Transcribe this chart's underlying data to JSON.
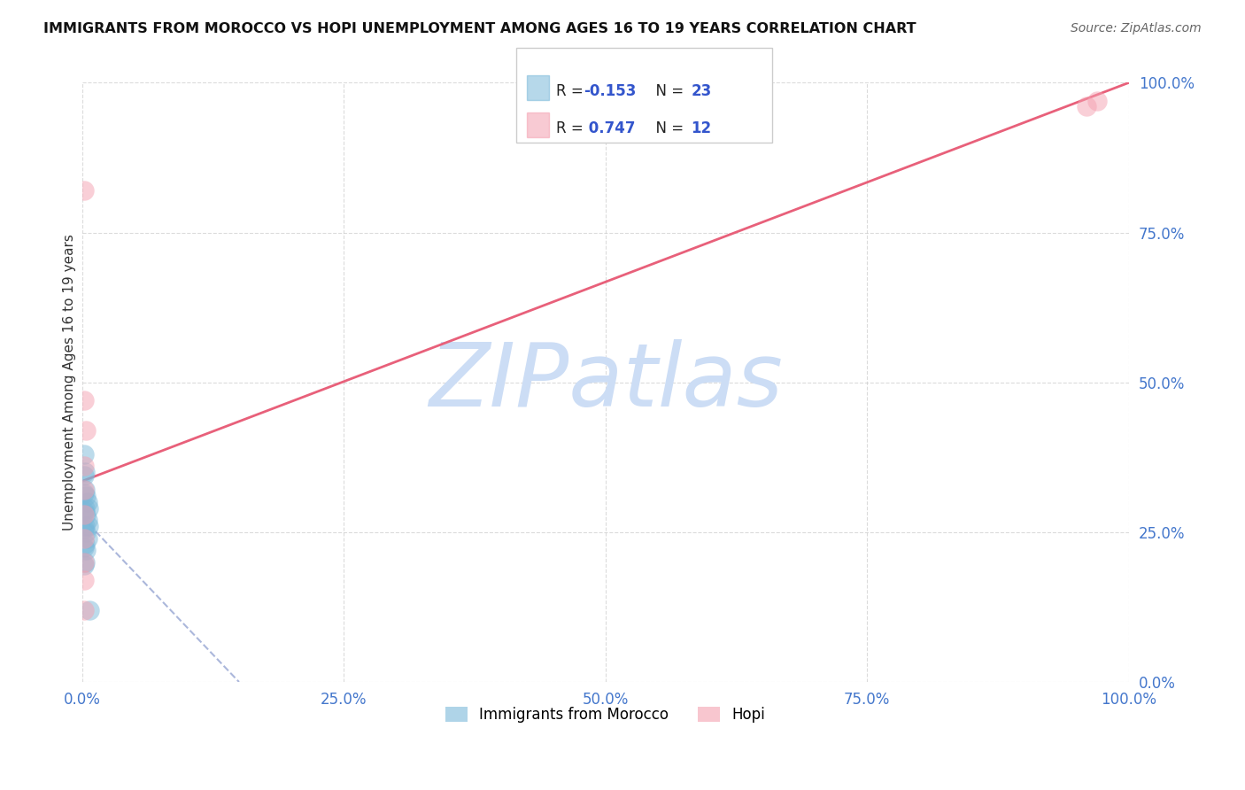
{
  "title": "IMMIGRANTS FROM MOROCCO VS HOPI UNEMPLOYMENT AMONG AGES 16 TO 19 YEARS CORRELATION CHART",
  "source": "Source: ZipAtlas.com",
  "ylabel": "Unemployment Among Ages 16 to 19 years",
  "xlim": [
    0,
    1
  ],
  "ylim": [
    0,
    1
  ],
  "xticks": [
    0.0,
    0.25,
    0.5,
    0.75,
    1.0
  ],
  "yticks": [
    0.0,
    0.25,
    0.5,
    0.75,
    1.0
  ],
  "xticklabels": [
    "0.0%",
    "25.0%",
    "50.0%",
    "75.0%",
    "100.0%"
  ],
  "yticklabels": [
    "0.0%",
    "25.0%",
    "50.0%",
    "75.0%",
    "100.0%"
  ],
  "legend_labels": [
    "Immigrants from Morocco",
    "Hopi"
  ],
  "morocco_R": -0.153,
  "morocco_N": 23,
  "hopi_R": 0.747,
  "hopi_N": 12,
  "blue_color": "#7ab8d9",
  "pink_color": "#f4a0b0",
  "blue_line_color": "#8899cc",
  "pink_line_color": "#e8607a",
  "blue_scatter": [
    [
      0.002,
      0.38
    ],
    [
      0.002,
      0.345
    ],
    [
      0.002,
      0.315
    ],
    [
      0.002,
      0.285
    ],
    [
      0.002,
      0.255
    ],
    [
      0.002,
      0.225
    ],
    [
      0.002,
      0.195
    ],
    [
      0.003,
      0.35
    ],
    [
      0.003,
      0.32
    ],
    [
      0.003,
      0.29
    ],
    [
      0.003,
      0.26
    ],
    [
      0.003,
      0.23
    ],
    [
      0.003,
      0.2
    ],
    [
      0.004,
      0.31
    ],
    [
      0.004,
      0.28
    ],
    [
      0.004,
      0.25
    ],
    [
      0.004,
      0.22
    ],
    [
      0.005,
      0.3
    ],
    [
      0.005,
      0.27
    ],
    [
      0.005,
      0.24
    ],
    [
      0.006,
      0.29
    ],
    [
      0.006,
      0.26
    ],
    [
      0.007,
      0.12
    ]
  ],
  "hopi_scatter": [
    [
      0.002,
      0.82
    ],
    [
      0.002,
      0.47
    ],
    [
      0.002,
      0.36
    ],
    [
      0.002,
      0.32
    ],
    [
      0.002,
      0.28
    ],
    [
      0.002,
      0.24
    ],
    [
      0.002,
      0.2
    ],
    [
      0.002,
      0.17
    ],
    [
      0.004,
      0.42
    ],
    [
      0.002,
      0.12
    ],
    [
      0.96,
      0.96
    ],
    [
      0.97,
      0.97
    ]
  ],
  "pink_line": [
    0.0,
    0.335,
    1.0,
    1.0
  ],
  "blue_line": [
    0.0,
    0.275,
    0.15,
    0.0
  ],
  "watermark": "ZIPatlas",
  "watermark_color": "#ccddf5",
  "background_color": "#ffffff",
  "grid_color": "#cccccc",
  "tick_color": "#4477cc",
  "title_color": "#111111",
  "source_color": "#666666"
}
